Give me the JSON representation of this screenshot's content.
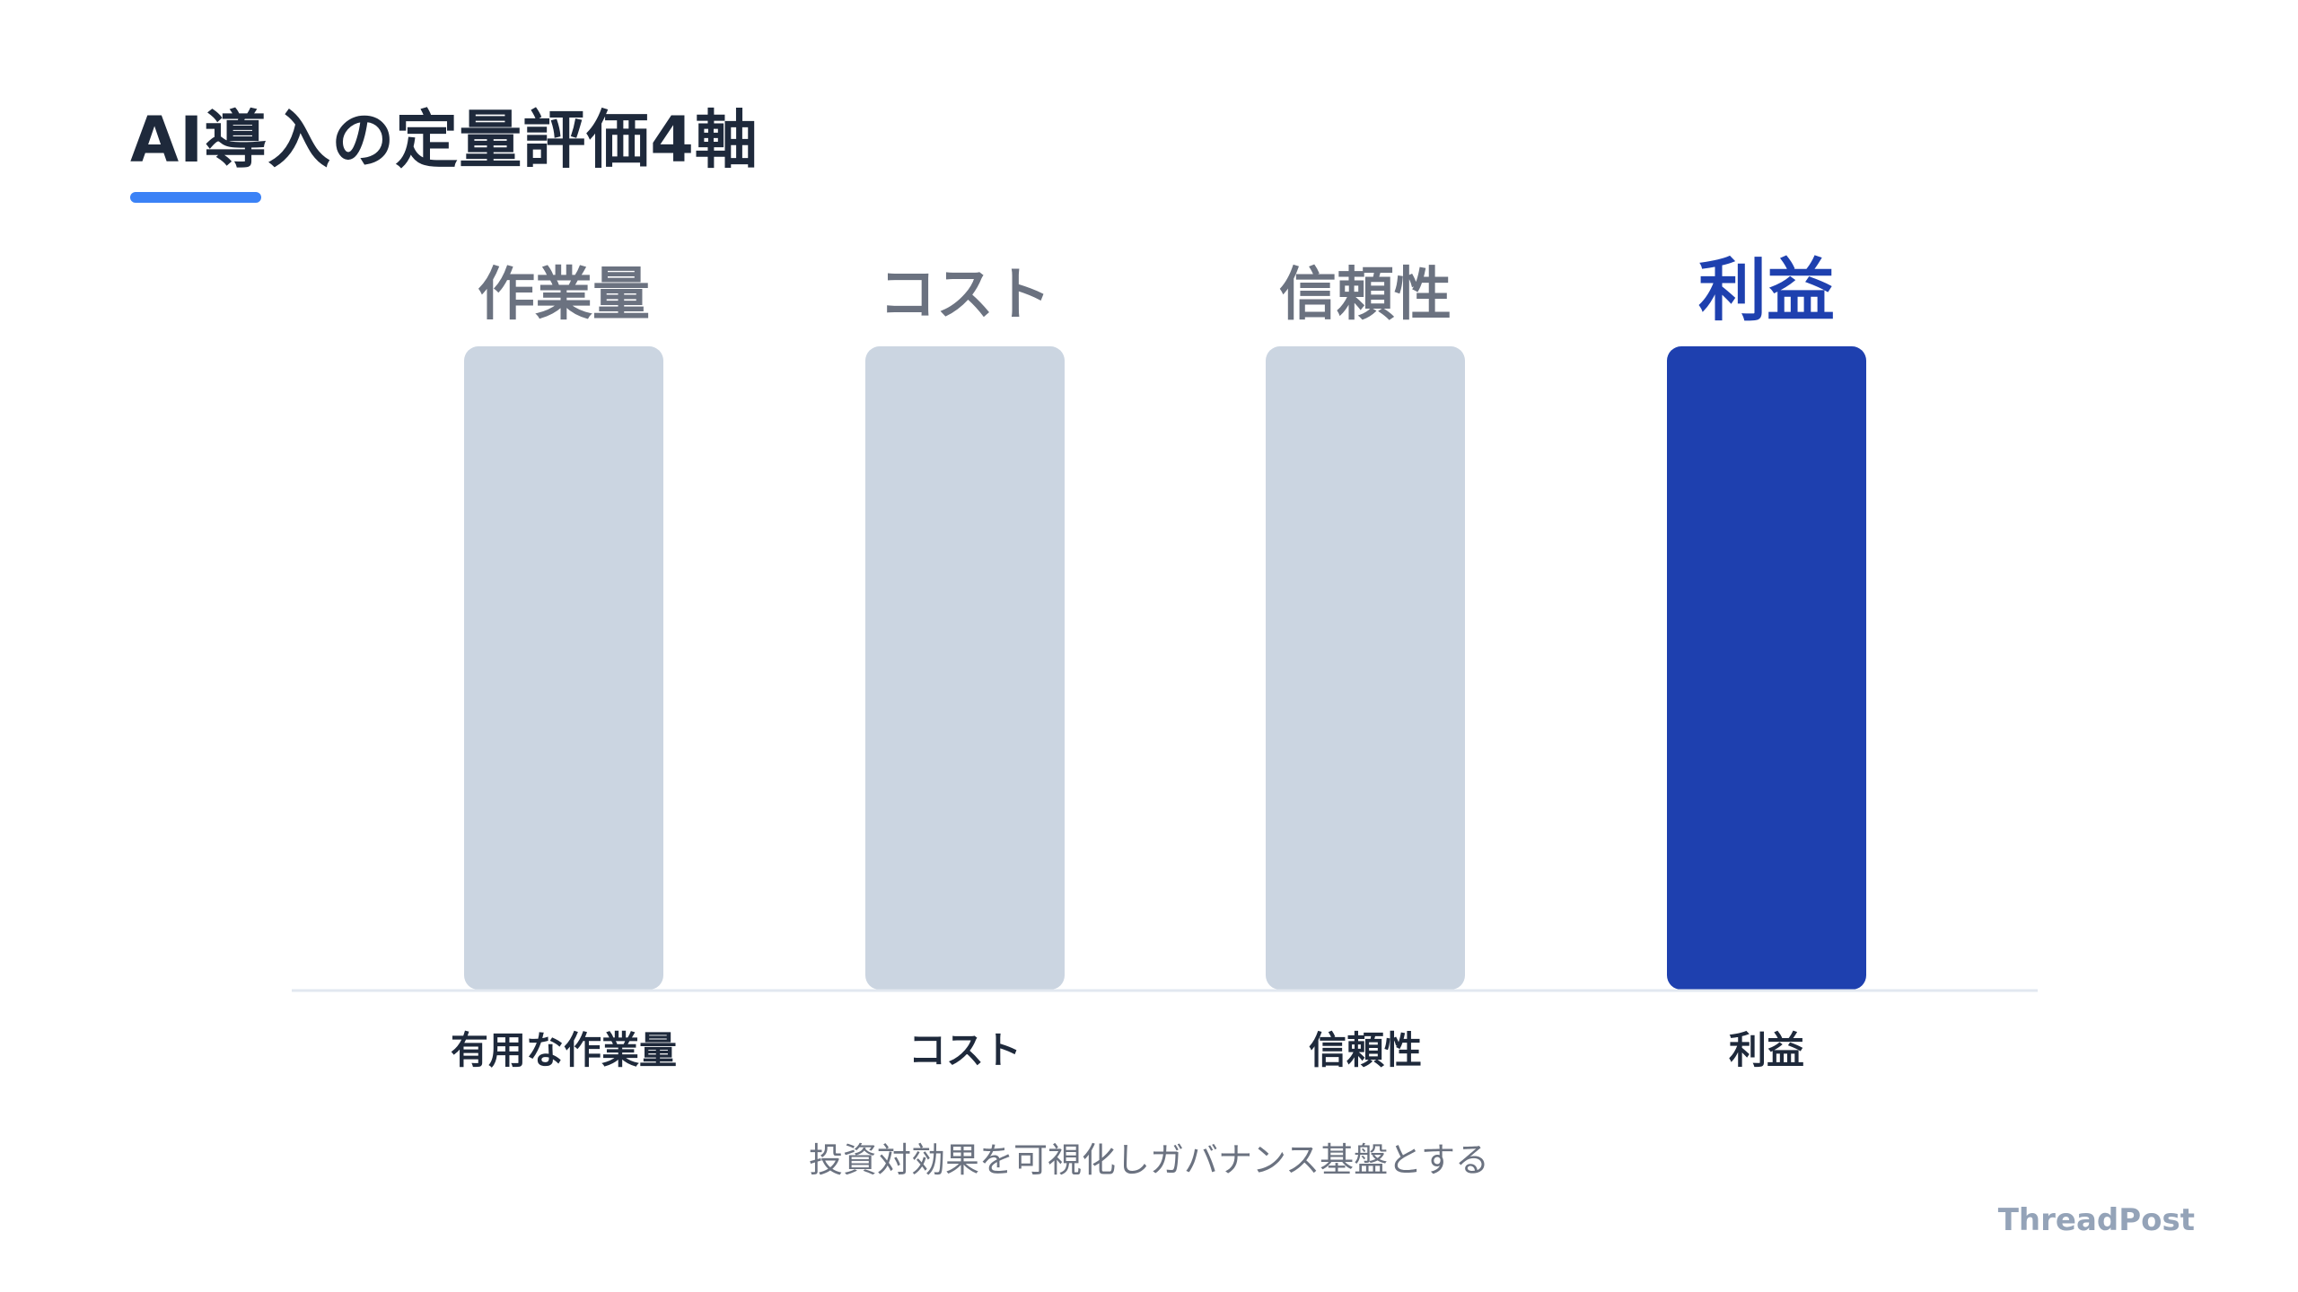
{
  "slide": {
    "title": "AI導入の定量評価4軸",
    "caption": "投資対効果を可視化しガバナンス基盤とする",
    "brand": "ThreadPost",
    "colors": {
      "accent": "#3b82f6",
      "title_text": "#1e293b",
      "caption_text": "#6b7280",
      "brand_text": "#94a3b8"
    }
  },
  "chart_data": {
    "type": "bar",
    "categories": [
      "有用な作業量",
      "コスト",
      "信頼性",
      "利益"
    ],
    "top_labels": [
      "作業量",
      "コスト",
      "信頼性",
      "利益"
    ],
    "values": [
      1,
      1,
      1,
      1
    ],
    "highlight_index": 3,
    "ylim": [
      0,
      1
    ],
    "grid": false,
    "legend": "none",
    "colors": {
      "bar_default": "#cbd5e1",
      "bar_highlight": "#1e40af",
      "top_label_default": "#6b7280",
      "top_label_highlight": "#1e40af",
      "bottom_label": "#1e293b",
      "baseline": "#e2e8f0"
    }
  }
}
